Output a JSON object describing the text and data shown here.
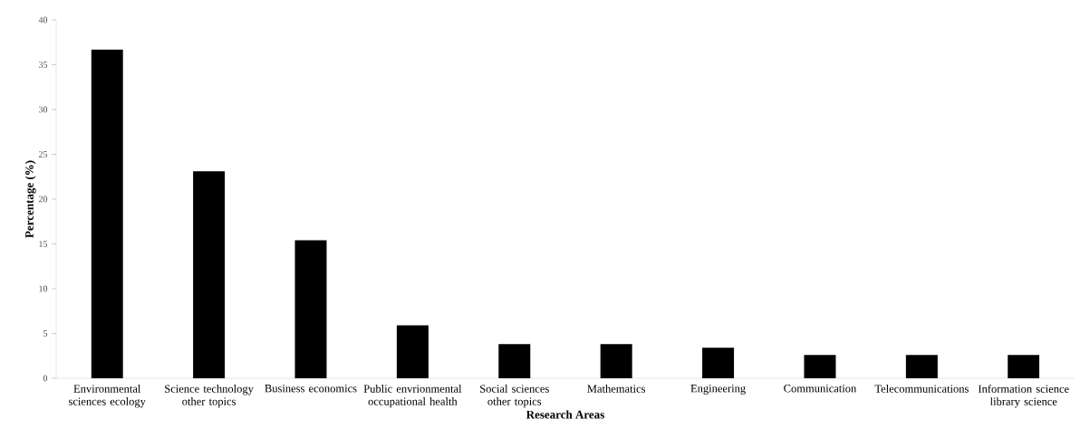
{
  "chart_data": {
    "type": "bar",
    "xlabel": "Research Areas",
    "ylabel": "Percentage  (%)",
    "categories": [
      "Environmental sciences ecology",
      "Science technology other topics",
      "Business economics",
      "Public envrionmental occupational health",
      "Social sciences other topics",
      "Mathematics",
      "Engineering",
      "Communication",
      "Telecommunications",
      "Information science library science"
    ],
    "values": [
      36.7,
      23.1,
      15.4,
      5.9,
      3.8,
      3.8,
      3.4,
      2.6,
      2.6,
      2.6
    ],
    "color": "#000000",
    "ylim": [
      0,
      40
    ],
    "yticks": [
      0,
      5,
      10,
      15,
      20,
      25,
      30,
      35,
      40
    ],
    "grid": false
  }
}
